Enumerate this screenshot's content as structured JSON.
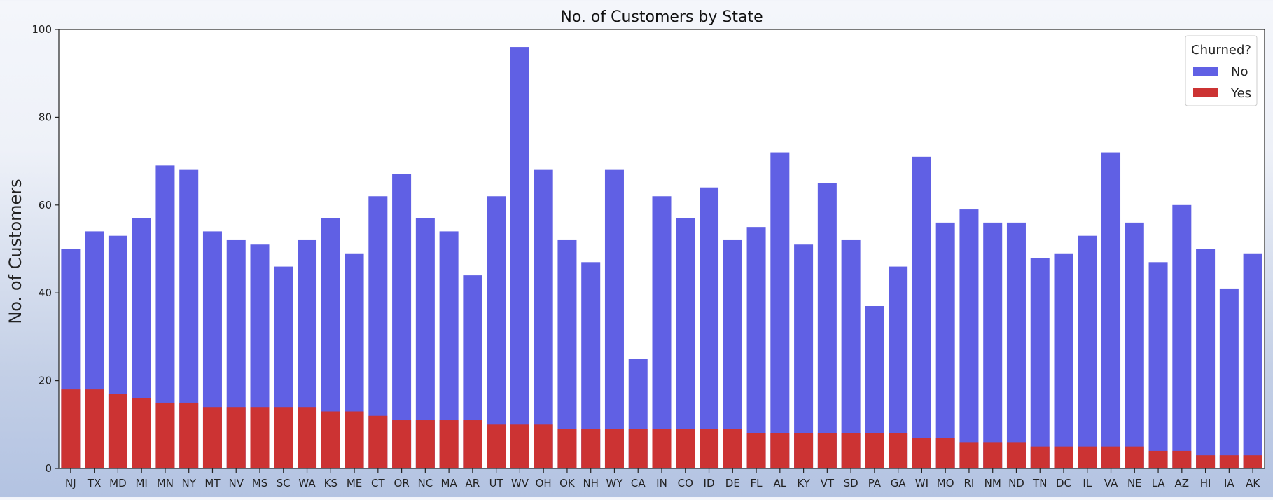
{
  "chart_data": {
    "type": "bar",
    "title": "No. of Customers by State",
    "xlabel": "",
    "ylabel": "No. of Customers",
    "ylim": [
      0,
      100
    ],
    "yticks": [
      0,
      20,
      40,
      60,
      80,
      100
    ],
    "grid": false,
    "stacked": "overlaid",
    "legend": {
      "title": "Churned?",
      "placement": "top-right"
    },
    "categories": [
      "NJ",
      "TX",
      "MD",
      "MI",
      "MN",
      "NY",
      "MT",
      "NV",
      "MS",
      "SC",
      "WA",
      "KS",
      "ME",
      "CT",
      "OR",
      "NC",
      "MA",
      "AR",
      "UT",
      "WV",
      "OH",
      "OK",
      "NH",
      "WY",
      "CA",
      "IN",
      "CO",
      "ID",
      "DE",
      "FL",
      "AL",
      "KY",
      "VT",
      "SD",
      "PA",
      "GA",
      "WI",
      "MO",
      "RI",
      "NM",
      "ND",
      "TN",
      "DC",
      "IL",
      "VA",
      "NE",
      "LA",
      "AZ",
      "HI",
      "IA",
      "AK"
    ],
    "series": [
      {
        "name": "No",
        "color": "#6060e4",
        "values": [
          50,
          54,
          53,
          57,
          69,
          68,
          54,
          52,
          51,
          46,
          52,
          57,
          49,
          62,
          67,
          57,
          54,
          44,
          62,
          96,
          68,
          52,
          47,
          68,
          25,
          62,
          57,
          64,
          52,
          55,
          72,
          51,
          65,
          52,
          37,
          46,
          71,
          56,
          59,
          56,
          56,
          48,
          49,
          53,
          72,
          56,
          47,
          60,
          50,
          41,
          49
        ]
      },
      {
        "name": "Yes",
        "color": "#cc3333",
        "values": [
          18,
          18,
          17,
          16,
          15,
          15,
          14,
          14,
          14,
          14,
          14,
          13,
          13,
          12,
          11,
          11,
          11,
          11,
          10,
          10,
          10,
          9,
          9,
          9,
          9,
          9,
          9,
          9,
          9,
          8,
          8,
          8,
          8,
          8,
          8,
          8,
          7,
          7,
          6,
          6,
          6,
          5,
          5,
          5,
          5,
          5,
          4,
          4,
          3,
          3,
          3
        ]
      }
    ]
  }
}
